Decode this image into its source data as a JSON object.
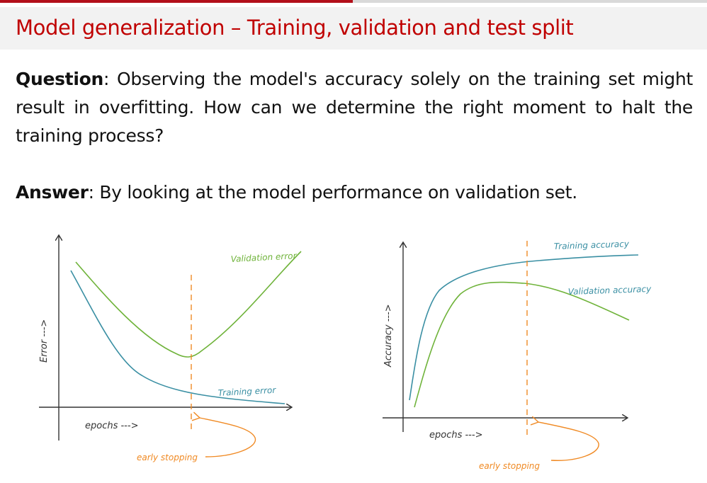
{
  "slide": {
    "title": "Model generalization – Training, validation and test split",
    "question_label": "Question",
    "question_text": ": Observing the model's accuracy solely on the training set might result in overfitting. How can we determine the right moment to halt the training process?",
    "answer_label": "Answer",
    "answer_text": ": By looking at the model performance on validation set."
  },
  "colors": {
    "title": "#c00000",
    "training_curve": "#3a8fa3",
    "validation_curve": "#6fb33a",
    "early_stopping": "#f08a24",
    "axis": "#333333"
  },
  "chart_data": [
    {
      "type": "line",
      "title": "",
      "xlabel": "epochs --->",
      "ylabel": "Error --->",
      "series": [
        {
          "name": "Validation error"
        },
        {
          "name": "Training error"
        }
      ],
      "annotation": "early stopping"
    },
    {
      "type": "line",
      "title": "",
      "xlabel": "epochs --->",
      "ylabel": "Accuracy --->",
      "series": [
        {
          "name": "Training accuracy"
        },
        {
          "name": "Validation accuracy"
        }
      ],
      "annotation": "early stopping"
    }
  ]
}
